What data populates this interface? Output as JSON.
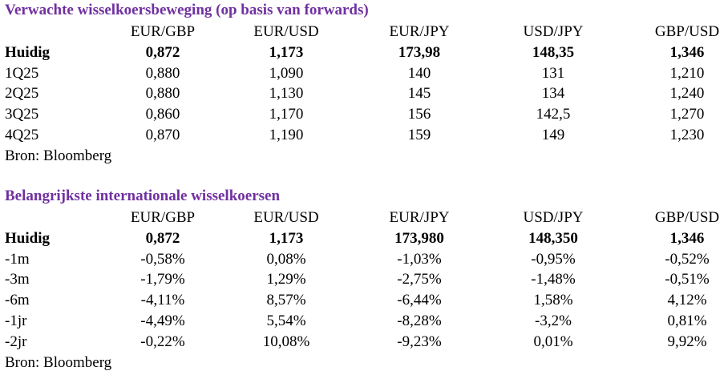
{
  "tables": [
    {
      "title": "Verwachte wisselkoersbeweging (op basis van forwards)",
      "columns": [
        "EUR/GBP",
        "EUR/USD",
        "EUR/JPY",
        "USD/JPY",
        "GBP/USD"
      ],
      "rows": [
        [
          "Huidig",
          "0,872",
          "1,173",
          "173,98",
          "148,35",
          "1,346"
        ],
        [
          "1Q25",
          "0,880",
          "1,090",
          "140",
          "131",
          "1,210"
        ],
        [
          "2Q25",
          "0,880",
          "1,130",
          "145",
          "134",
          "1,240"
        ],
        [
          "3Q25",
          "0,860",
          "1,170",
          "156",
          "142,5",
          "1,270"
        ],
        [
          "4Q25",
          "0,870",
          "1,190",
          "159",
          "149",
          "1,230"
        ]
      ],
      "source": "Bron: Bloomberg"
    },
    {
      "title": "Belangrijkste internationale wisselkoersen",
      "columns": [
        "EUR/GBP",
        "EUR/USD",
        "EUR/JPY",
        "USD/JPY",
        "GBP/USD"
      ],
      "rows": [
        [
          "Huidig",
          "0,872",
          "1,173",
          "173,980",
          "148,350",
          "1,346"
        ],
        [
          "-1m",
          "-0,58%",
          "0,08%",
          "-1,03%",
          "-0,95%",
          "-0,52%"
        ],
        [
          "-3m",
          "-1,79%",
          "1,29%",
          "-2,75%",
          "-1,48%",
          "-0,51%"
        ],
        [
          "-6m",
          "-4,11%",
          "8,57%",
          "-6,44%",
          "1,58%",
          "4,12%"
        ],
        [
          "-1jr",
          "-4,49%",
          "5,54%",
          "-8,28%",
          "-3,2%",
          "0,81%"
        ],
        [
          "-2jr",
          "-0,22%",
          "10,08%",
          "-9,23%",
          "0,01%",
          "9,92%"
        ]
      ],
      "source": "Bron: Bloomberg"
    }
  ]
}
